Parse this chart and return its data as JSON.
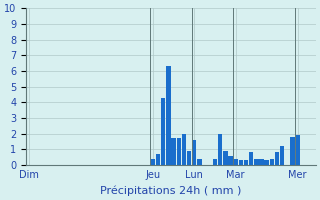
{
  "title": "",
  "xlabel": "Précipitations 24h ( mm )",
  "ylabel": "",
  "ylim": [
    0,
    10
  ],
  "background_color": "#d8f0f0",
  "bar_color": "#1a6ecc",
  "grid_color": "#b0c8c8",
  "tick_label_color": "#2244aa",
  "xlabel_color": "#2244aa",
  "ytick_color": "#2244aa",
  "n_bars": 56,
  "day_labels": [
    "Dim",
    "Jeu",
    "Lun",
    "Mar",
    "Mer"
  ],
  "day_positions": [
    0,
    24,
    32,
    40,
    52
  ],
  "values": [
    0,
    0,
    0,
    0,
    0,
    0,
    0,
    0,
    0,
    0,
    0,
    0,
    0,
    0,
    0,
    0,
    0,
    0,
    0,
    0,
    0,
    0,
    0,
    0,
    0.4,
    0.7,
    4.3,
    6.3,
    1.7,
    1.7,
    2.0,
    0.9,
    1.6,
    0.4,
    0,
    0,
    0.4,
    2.0,
    0.9,
    0.6,
    0.4,
    0.3,
    0.3,
    0.8,
    0.4,
    0.4,
    0.3,
    0.4,
    0.8,
    1.2,
    0,
    1.8,
    1.9,
    0,
    0,
    0
  ]
}
